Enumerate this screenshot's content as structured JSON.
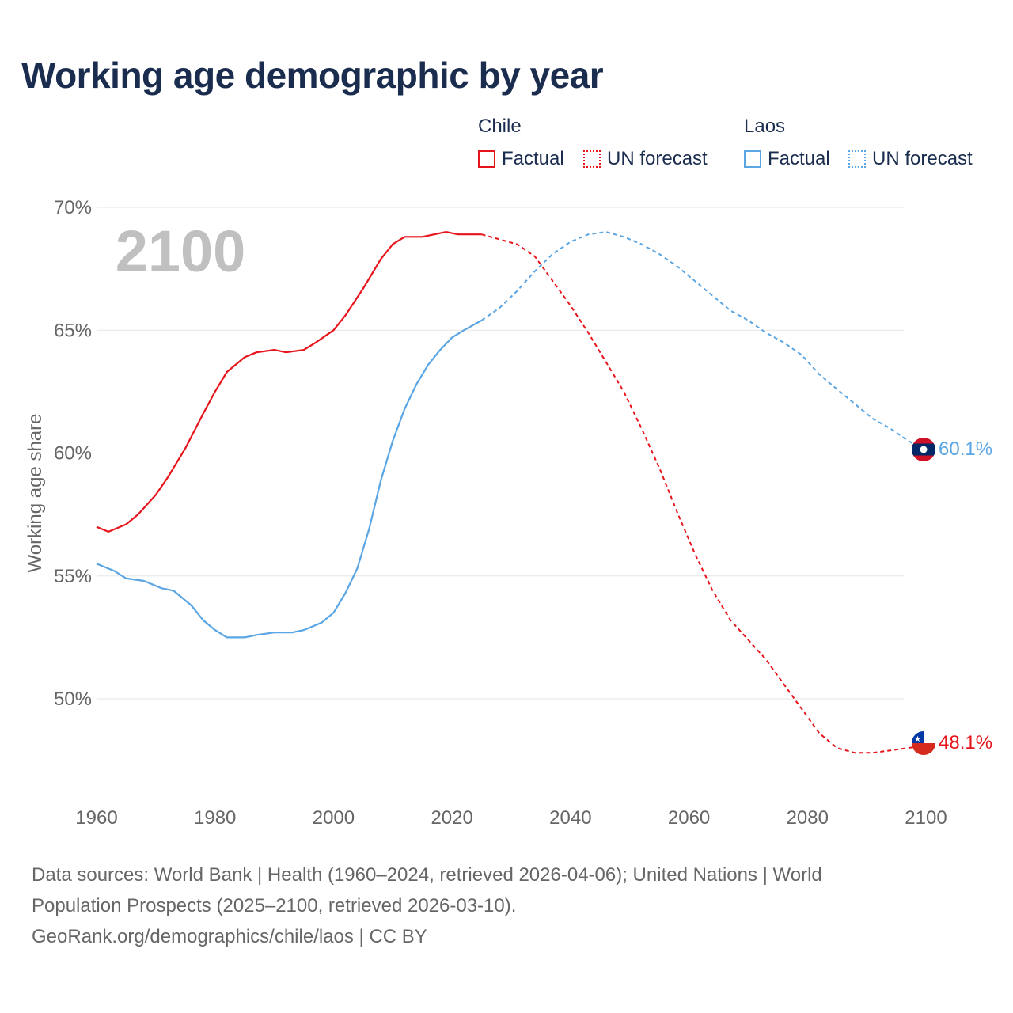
{
  "title": "Working age demographic by year",
  "year_watermark": "2100",
  "legend": [
    {
      "country": "Chile",
      "factual_label": "Factual",
      "forecast_label": "UN forecast",
      "color": "#e8141b"
    },
    {
      "country": "Laos",
      "factual_label": "Factual",
      "forecast_label": "UN forecast",
      "color": "#5aa5e3"
    }
  ],
  "colors": {
    "chile": "#e8141b",
    "laos": "#5aa5e3",
    "grid": "#e6e6e6",
    "axis_text": "#666666",
    "title": "#1b2d4f",
    "watermark": "#c0c0c0"
  },
  "sources": [
    "Data sources: World Bank | Health (1960–2024, retrieved 2026-04-06); United Nations | World",
    "Population Prospects (2025–2100, retrieved 2026-03-10).",
    "GeoRank.org/demographics/chile/laos | CC BY"
  ],
  "chart_data": {
    "type": "line",
    "title": "Working age demographic by year",
    "xlabel": "",
    "ylabel": "Working age share",
    "xlim": [
      1960,
      2100
    ],
    "ylim": [
      46.2,
      70
    ],
    "x_ticks": [
      1960,
      1980,
      2000,
      2020,
      2040,
      2060,
      2080,
      2100
    ],
    "x_tick_labels": [
      "1960",
      "1980",
      "2000",
      "2020",
      "2040",
      "2060",
      "2080",
      "2100"
    ],
    "y_ticks": [
      50,
      55,
      60,
      65,
      70
    ],
    "y_tick_labels": [
      "50%",
      "55%",
      "60%",
      "65%",
      "70%"
    ],
    "forecast_start_year": 2025,
    "series": [
      {
        "name": "Chile",
        "end_label": "48.1%",
        "flag": "chile-flag",
        "points": [
          [
            1960,
            57.0
          ],
          [
            1962,
            56.8
          ],
          [
            1965,
            57.1
          ],
          [
            1967,
            57.5
          ],
          [
            1970,
            58.3
          ],
          [
            1972,
            59.0
          ],
          [
            1975,
            60.2
          ],
          [
            1978,
            61.6
          ],
          [
            1980,
            62.5
          ],
          [
            1982,
            63.3
          ],
          [
            1985,
            63.9
          ],
          [
            1987,
            64.1
          ],
          [
            1990,
            64.2
          ],
          [
            1992,
            64.1
          ],
          [
            1995,
            64.2
          ],
          [
            1997,
            64.5
          ],
          [
            2000,
            65.0
          ],
          [
            2002,
            65.6
          ],
          [
            2005,
            66.7
          ],
          [
            2008,
            67.9
          ],
          [
            2010,
            68.5
          ],
          [
            2012,
            68.8
          ],
          [
            2015,
            68.8
          ],
          [
            2017,
            68.9
          ],
          [
            2019,
            69.0
          ],
          [
            2021,
            68.9
          ],
          [
            2025,
            68.9
          ],
          [
            2028,
            68.7
          ],
          [
            2031,
            68.5
          ],
          [
            2034,
            68.0
          ],
          [
            2037,
            67.0
          ],
          [
            2040,
            66.0
          ],
          [
            2043,
            64.9
          ],
          [
            2046,
            63.7
          ],
          [
            2049,
            62.5
          ],
          [
            2052,
            61.0
          ],
          [
            2055,
            59.4
          ],
          [
            2058,
            57.6
          ],
          [
            2061,
            55.9
          ],
          [
            2064,
            54.4
          ],
          [
            2067,
            53.2
          ],
          [
            2070,
            52.4
          ],
          [
            2073,
            51.6
          ],
          [
            2076,
            50.6
          ],
          [
            2079,
            49.6
          ],
          [
            2082,
            48.6
          ],
          [
            2085,
            48.0
          ],
          [
            2088,
            47.8
          ],
          [
            2091,
            47.8
          ],
          [
            2094,
            47.9
          ],
          [
            2097,
            48.0
          ],
          [
            2100,
            48.1
          ]
        ]
      },
      {
        "name": "Laos",
        "end_label": "60.1%",
        "flag": "laos-flag",
        "points": [
          [
            1960,
            55.5
          ],
          [
            1963,
            55.2
          ],
          [
            1965,
            54.9
          ],
          [
            1968,
            54.8
          ],
          [
            1971,
            54.5
          ],
          [
            1973,
            54.4
          ],
          [
            1976,
            53.8
          ],
          [
            1978,
            53.2
          ],
          [
            1980,
            52.8
          ],
          [
            1982,
            52.5
          ],
          [
            1985,
            52.5
          ],
          [
            1987,
            52.6
          ],
          [
            1990,
            52.7
          ],
          [
            1993,
            52.7
          ],
          [
            1995,
            52.8
          ],
          [
            1998,
            53.1
          ],
          [
            2000,
            53.5
          ],
          [
            2002,
            54.3
          ],
          [
            2004,
            55.3
          ],
          [
            2006,
            56.9
          ],
          [
            2008,
            58.9
          ],
          [
            2010,
            60.5
          ],
          [
            2012,
            61.8
          ],
          [
            2014,
            62.8
          ],
          [
            2016,
            63.6
          ],
          [
            2018,
            64.2
          ],
          [
            2020,
            64.7
          ],
          [
            2022,
            65.0
          ],
          [
            2025,
            65.4
          ],
          [
            2028,
            65.9
          ],
          [
            2031,
            66.6
          ],
          [
            2034,
            67.4
          ],
          [
            2037,
            68.1
          ],
          [
            2040,
            68.6
          ],
          [
            2043,
            68.9
          ],
          [
            2046,
            69.0
          ],
          [
            2049,
            68.8
          ],
          [
            2052,
            68.5
          ],
          [
            2055,
            68.1
          ],
          [
            2058,
            67.6
          ],
          [
            2061,
            67.0
          ],
          [
            2064,
            66.4
          ],
          [
            2067,
            65.8
          ],
          [
            2070,
            65.4
          ],
          [
            2073,
            64.9
          ],
          [
            2076,
            64.5
          ],
          [
            2079,
            64.0
          ],
          [
            2082,
            63.2
          ],
          [
            2085,
            62.6
          ],
          [
            2088,
            62.0
          ],
          [
            2091,
            61.4
          ],
          [
            2094,
            61.0
          ],
          [
            2097,
            60.5
          ],
          [
            2100,
            60.1
          ]
        ]
      }
    ]
  }
}
